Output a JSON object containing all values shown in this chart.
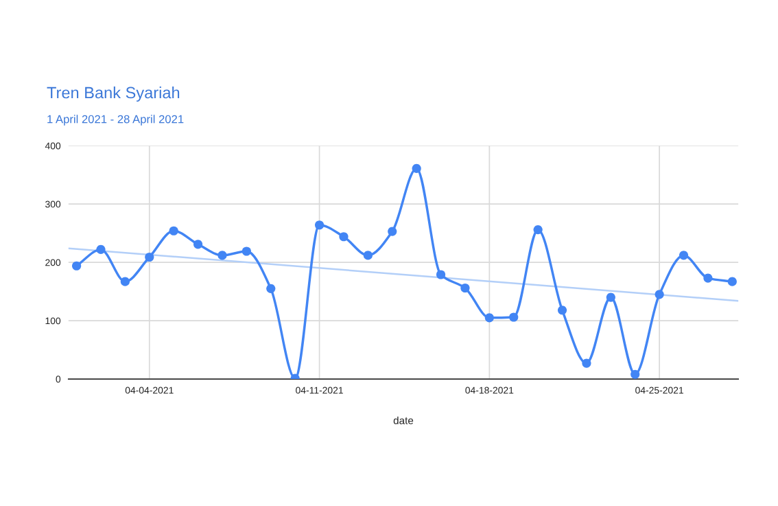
{
  "chart_data": {
    "type": "line",
    "title": "Tren Bank Syariah",
    "subtitle": "1 April 2021 - 28 April 2021",
    "xlabel": "date",
    "x": [
      "2021-04-01",
      "2021-04-02",
      "2021-04-03",
      "2021-04-04",
      "2021-04-05",
      "2021-04-06",
      "2021-04-07",
      "2021-04-08",
      "2021-04-09",
      "2021-04-10",
      "2021-04-11",
      "2021-04-12",
      "2021-04-13",
      "2021-04-14",
      "2021-04-15",
      "2021-04-16",
      "2021-04-17",
      "2021-04-18",
      "2021-04-19",
      "2021-04-20",
      "2021-04-21",
      "2021-04-22",
      "2021-04-23",
      "2021-04-24",
      "2021-04-25",
      "2021-04-26",
      "2021-04-27",
      "2021-04-28"
    ],
    "series": [
      {
        "color": "#4285f4",
        "marker": "circle",
        "values": [
          194,
          222,
          167,
          209,
          254,
          231,
          212,
          219,
          155,
          1,
          264,
          244,
          212,
          253,
          361,
          179,
          156,
          105,
          106,
          256,
          118,
          27,
          140,
          8,
          145,
          212,
          173,
          167
        ]
      },
      {
        "type": "line",
        "color": "#b3cff8",
        "marker": "none",
        "x": [
          "2021-03-31T16:00",
          "2021-04-28T06:00"
        ],
        "values": [
          224,
          134
        ]
      }
    ],
    "xlim": [
      "2021-03-31T16:00",
      "2021-04-28T06:00"
    ],
    "xticks": [
      {
        "value": "2021-04-04",
        "label": "04-04-2021"
      },
      {
        "value": "2021-04-11",
        "label": "04-11-2021"
      },
      {
        "value": "2021-04-18",
        "label": "04-18-2021"
      },
      {
        "value": "2021-04-25",
        "label": "04-25-2021"
      }
    ],
    "ylim": [
      0,
      400
    ],
    "yticks": [
      0,
      100,
      200,
      300,
      400
    ],
    "grid": true,
    "legend": false
  }
}
